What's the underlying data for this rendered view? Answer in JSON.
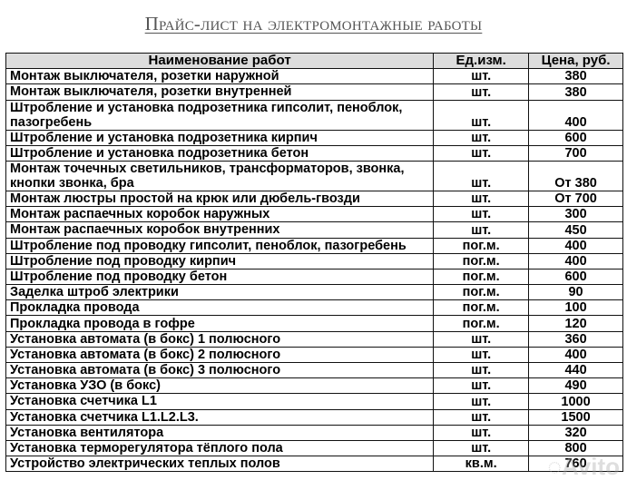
{
  "title": "Прайс-лист на электромонтажные работы",
  "headers": {
    "name": "Наименование работ",
    "unit": "Ед.изм.",
    "price": "Цена, руб."
  },
  "rows": [
    {
      "name": "Монтаж выключателя, розетки наружной",
      "unit": "шт.",
      "price": "380"
    },
    {
      "name": "Монтаж выключателя, розетки внутренней",
      "unit": "шт.",
      "price": "380"
    },
    {
      "name": "Штробление и установка подрозетника гипсолит, пеноблок, пазогребень",
      "unit": "шт.",
      "price": "400"
    },
    {
      "name": "Штробление и установка подрозетника кирпич",
      "unit": "шт.",
      "price": "600"
    },
    {
      "name": "Штробление и установка подрозетника бетон",
      "unit": "шт.",
      "price": "700"
    },
    {
      "name": "Монтаж точечных светильников, трансформаторов, звонка, кнопки звонка, бра",
      "unit": "шт.",
      "price": "От 380"
    },
    {
      "name": "Монтаж люстры простой на крюк или дюбель-гвозди",
      "unit": "шт.",
      "price": "От 700"
    },
    {
      "name": "Монтаж распаечных коробок наружных",
      "unit": "шт.",
      "price": "300"
    },
    {
      "name": "Монтаж распаечных коробок внутренних",
      "unit": "шт.",
      "price": "450"
    },
    {
      "name": "Штробление под проводку гипсолит, пеноблок, пазогребень",
      "unit": "пог.м.",
      "price": "400"
    },
    {
      "name": "Штробление под проводку кирпич",
      "unit": "пог.м.",
      "price": "400"
    },
    {
      "name": "Штробление под проводку бетон",
      "unit": "пог.м.",
      "price": "600"
    },
    {
      "name": "Заделка штроб электрики",
      "unit": "пог.м.",
      "price": "90"
    },
    {
      "name": "Прокладка провода",
      "unit": "пог.м.",
      "price": "100"
    },
    {
      "name": "Прокладка провода в гофре",
      "unit": "пог.м.",
      "price": "120"
    },
    {
      "name": "Установка автомата (в бокс) 1 полюсного",
      "unit": "шт.",
      "price": "360"
    },
    {
      "name": "Установка автомата (в бокс) 2 полюсного",
      "unit": "шт.",
      "price": "400"
    },
    {
      "name": "Установка автомата (в бокс) 3 полюсного",
      "unit": "шт.",
      "price": "440"
    },
    {
      "name": "Установка УЗО (в бокс)",
      "unit": "шт.",
      "price": "490"
    },
    {
      "name": "Установка счетчика L1",
      "unit": "шт.",
      "price": "1000"
    },
    {
      "name": "Установка счетчика L1.L2.L3.",
      "unit": "шт.",
      "price": "1500"
    },
    {
      "name": "Установка вентилятора",
      "unit": "шт.",
      "price": "320"
    },
    {
      "name": "Установка терморегулятора тёплого пола",
      "unit": "шт.",
      "price": "800"
    },
    {
      "name": "Устройство электрических теплых полов",
      "unit": "кв.м.",
      "price": "760"
    }
  ],
  "watermark": "Avito"
}
